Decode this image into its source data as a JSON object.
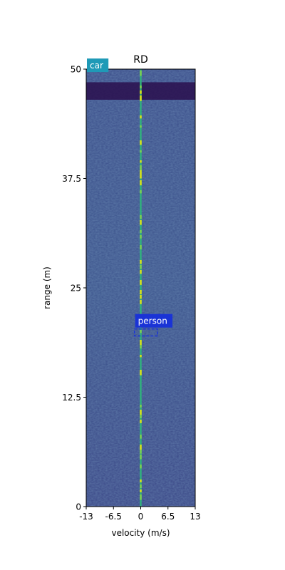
{
  "chart_data": {
    "type": "heatmap",
    "title": "RD",
    "xlabel": "velocity (m/s)",
    "ylabel": "range (m)",
    "xlim": [
      -13,
      13
    ],
    "ylim": [
      0,
      50
    ],
    "xticks": [
      -13,
      -6.5,
      0,
      6.5,
      13
    ],
    "xtick_labels": [
      "-13",
      "-6.5",
      "0",
      "6.5",
      "13"
    ],
    "yticks": [
      0,
      12.5,
      25,
      37.5,
      50
    ],
    "ytick_labels": [
      "0",
      "12.5",
      "25",
      "37.5",
      "50"
    ],
    "colormap": "viridis",
    "grid": false,
    "zero_velocity_line": {
      "velocity": 0,
      "color": "#2fb47c"
    },
    "high_intensity_band": {
      "range_min": 46.5,
      "range_max": 48.5,
      "color": "#2a0f4e"
    },
    "detections": [
      {
        "label": "car",
        "velocity_min": -13,
        "velocity_max": -13,
        "range_min": 49.5,
        "range_max": 49.5,
        "color": "#1f9ab7"
      },
      {
        "label": "person",
        "velocity_min": -1.5,
        "velocity_max": 4,
        "range_min": 19.5,
        "range_max": 20.3,
        "color": "#1a33d6"
      }
    ]
  }
}
